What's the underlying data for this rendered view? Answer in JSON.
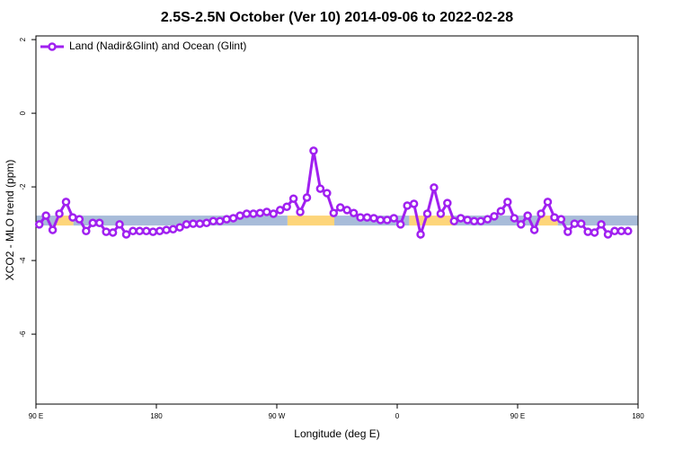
{
  "chart_data": {
    "type": "line",
    "title": "2.5S-2.5N October (Ver 10)   2014-09-06 to 2022-02-28",
    "xlabel": "Longitude (deg E)",
    "ylabel": "XCO2 - MLO trend (ppm)",
    "xlim": [
      90,
      540
    ],
    "ylim": [
      -7.9,
      2.1
    ],
    "xticks": [
      {
        "value": 90,
        "label": "90 E"
      },
      180,
      {
        "value": 270,
        "label": "90 W"
      },
      {
        "value": 360,
        "label": "0"
      },
      {
        "value": 450,
        "label": "90 E"
      },
      {
        "value": 540,
        "label": "180"
      }
    ],
    "yticks": [
      2,
      0,
      -2,
      -4,
      -6
    ],
    "legend": "top-left",
    "band": {
      "ylim": [
        -3.05,
        -2.78
      ],
      "segments": [
        {
          "x": [
            90,
            105
          ],
          "color": "#a8bcd9"
        },
        {
          "x": [
            105,
            118
          ],
          "color": "#fdd57a"
        },
        {
          "x": [
            118,
            278
          ],
          "color": "#a8bcd9"
        },
        {
          "x": [
            278,
            313
          ],
          "color": "#fdd57a"
        },
        {
          "x": [
            313,
            369
          ],
          "color": "#a8bcd9"
        },
        {
          "x": [
            369,
            402
          ],
          "color": "#fdd57a"
        },
        {
          "x": [
            402,
            466
          ],
          "color": "#a8bcd9"
        },
        {
          "x": [
            466,
            480
          ],
          "color": "#fdd57a"
        },
        {
          "x": [
            480,
            540
          ],
          "color": "#a8bcd9"
        }
      ]
    },
    "x": [
      92.5,
      97.5,
      102.5,
      107.5,
      112.5,
      117.5,
      122.5,
      127.5,
      132.5,
      137.5,
      142.5,
      147.5,
      152.5,
      157.5,
      162.5,
      167.5,
      172.5,
      177.5,
      182.5,
      187.5,
      192.5,
      197.5,
      202.5,
      207.5,
      212.5,
      217.5,
      222.5,
      227.5,
      232.5,
      237.5,
      242.5,
      247.5,
      252.5,
      257.5,
      262.5,
      267.5,
      272.5,
      277.5,
      282.5,
      287.5,
      292.5,
      297.5,
      302.5,
      307.5,
      312.5,
      317.5,
      322.5,
      327.5,
      332.5,
      337.5,
      342.5,
      347.5,
      352.5,
      357.5,
      362.5,
      367.5,
      372.5,
      377.5,
      382.5,
      387.5,
      392.5,
      397.5,
      402.5,
      407.5,
      412.5,
      417.5,
      422.5,
      427.5,
      432.5,
      437.5,
      442.5,
      447.5,
      452.5,
      457.5,
      462.5,
      467.5,
      472.5,
      477.5,
      482.5,
      487.5,
      492.5,
      497.5,
      502.5,
      507.5,
      512.5,
      517.5,
      522.5,
      527.5,
      532.5
    ],
    "series": [
      {
        "name": "Land (Nadir&Glint) and Ocean (Glint)",
        "color": "#a020f0",
        "values": [
          -3.02,
          -2.78,
          -3.17,
          -2.73,
          -2.41,
          -2.83,
          -2.88,
          -3.2,
          -2.98,
          -2.98,
          -3.22,
          -3.24,
          -3.02,
          -3.29,
          -3.2,
          -3.2,
          -3.2,
          -3.22,
          -3.2,
          -3.17,
          -3.15,
          -3.1,
          -3.02,
          -3.0,
          -3.0,
          -2.98,
          -2.93,
          -2.93,
          -2.88,
          -2.85,
          -2.78,
          -2.73,
          -2.73,
          -2.71,
          -2.68,
          -2.73,
          -2.63,
          -2.54,
          -2.32,
          -2.68,
          -2.29,
          -1.02,
          -2.05,
          -2.17,
          -2.71,
          -2.56,
          -2.63,
          -2.71,
          -2.83,
          -2.83,
          -2.85,
          -2.9,
          -2.9,
          -2.85,
          -3.02,
          -2.51,
          -2.46,
          -3.29,
          -2.73,
          -2.02,
          -2.73,
          -2.44,
          -2.93,
          -2.85,
          -2.9,
          -2.93,
          -2.93,
          -2.88,
          -2.8,
          -2.66,
          -2.41,
          -2.85,
          -3.02,
          -2.78,
          -3.17,
          -2.73,
          -2.41,
          -2.83,
          -2.88,
          -3.22,
          -3.0,
          -3.0,
          -3.22,
          -3.24,
          -3.02,
          -3.29,
          -3.2,
          -3.2,
          -3.2
        ]
      }
    ]
  }
}
